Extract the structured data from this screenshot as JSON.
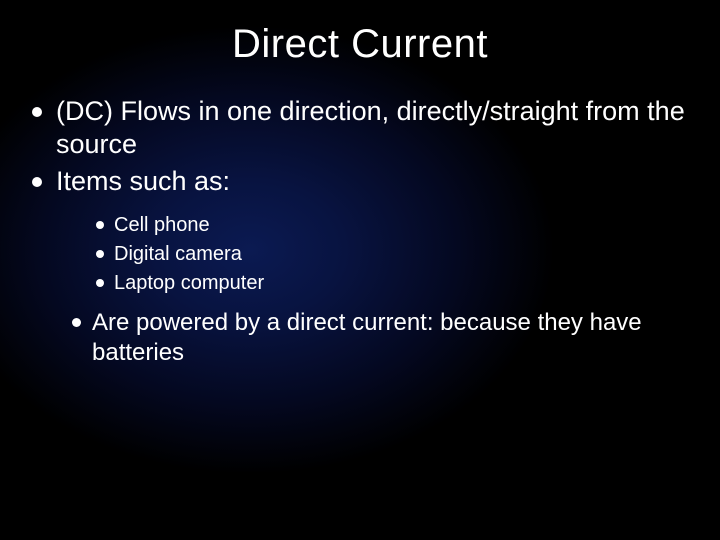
{
  "slide": {
    "title": "Direct Current",
    "background": {
      "gradient_center": "#0b1a52",
      "gradient_mid": "#081340",
      "gradient_outer": "#000000"
    },
    "text_color": "#ffffff",
    "bullet_color": "#ffffff",
    "title_fontsize": 40,
    "body_fontsize_lvl1": 27,
    "body_fontsize_lvl2": 20,
    "body_fontsize_lvl3": 24,
    "bullets_lvl1": [
      "(DC) Flows in one direction, directly/straight from the source",
      "Items such as:"
    ],
    "bullets_lvl2": [
      "Cell phone",
      "Digital camera",
      "Laptop computer"
    ],
    "bullets_lvl3": [
      "Are powered by a direct current: because they have batteries"
    ]
  }
}
